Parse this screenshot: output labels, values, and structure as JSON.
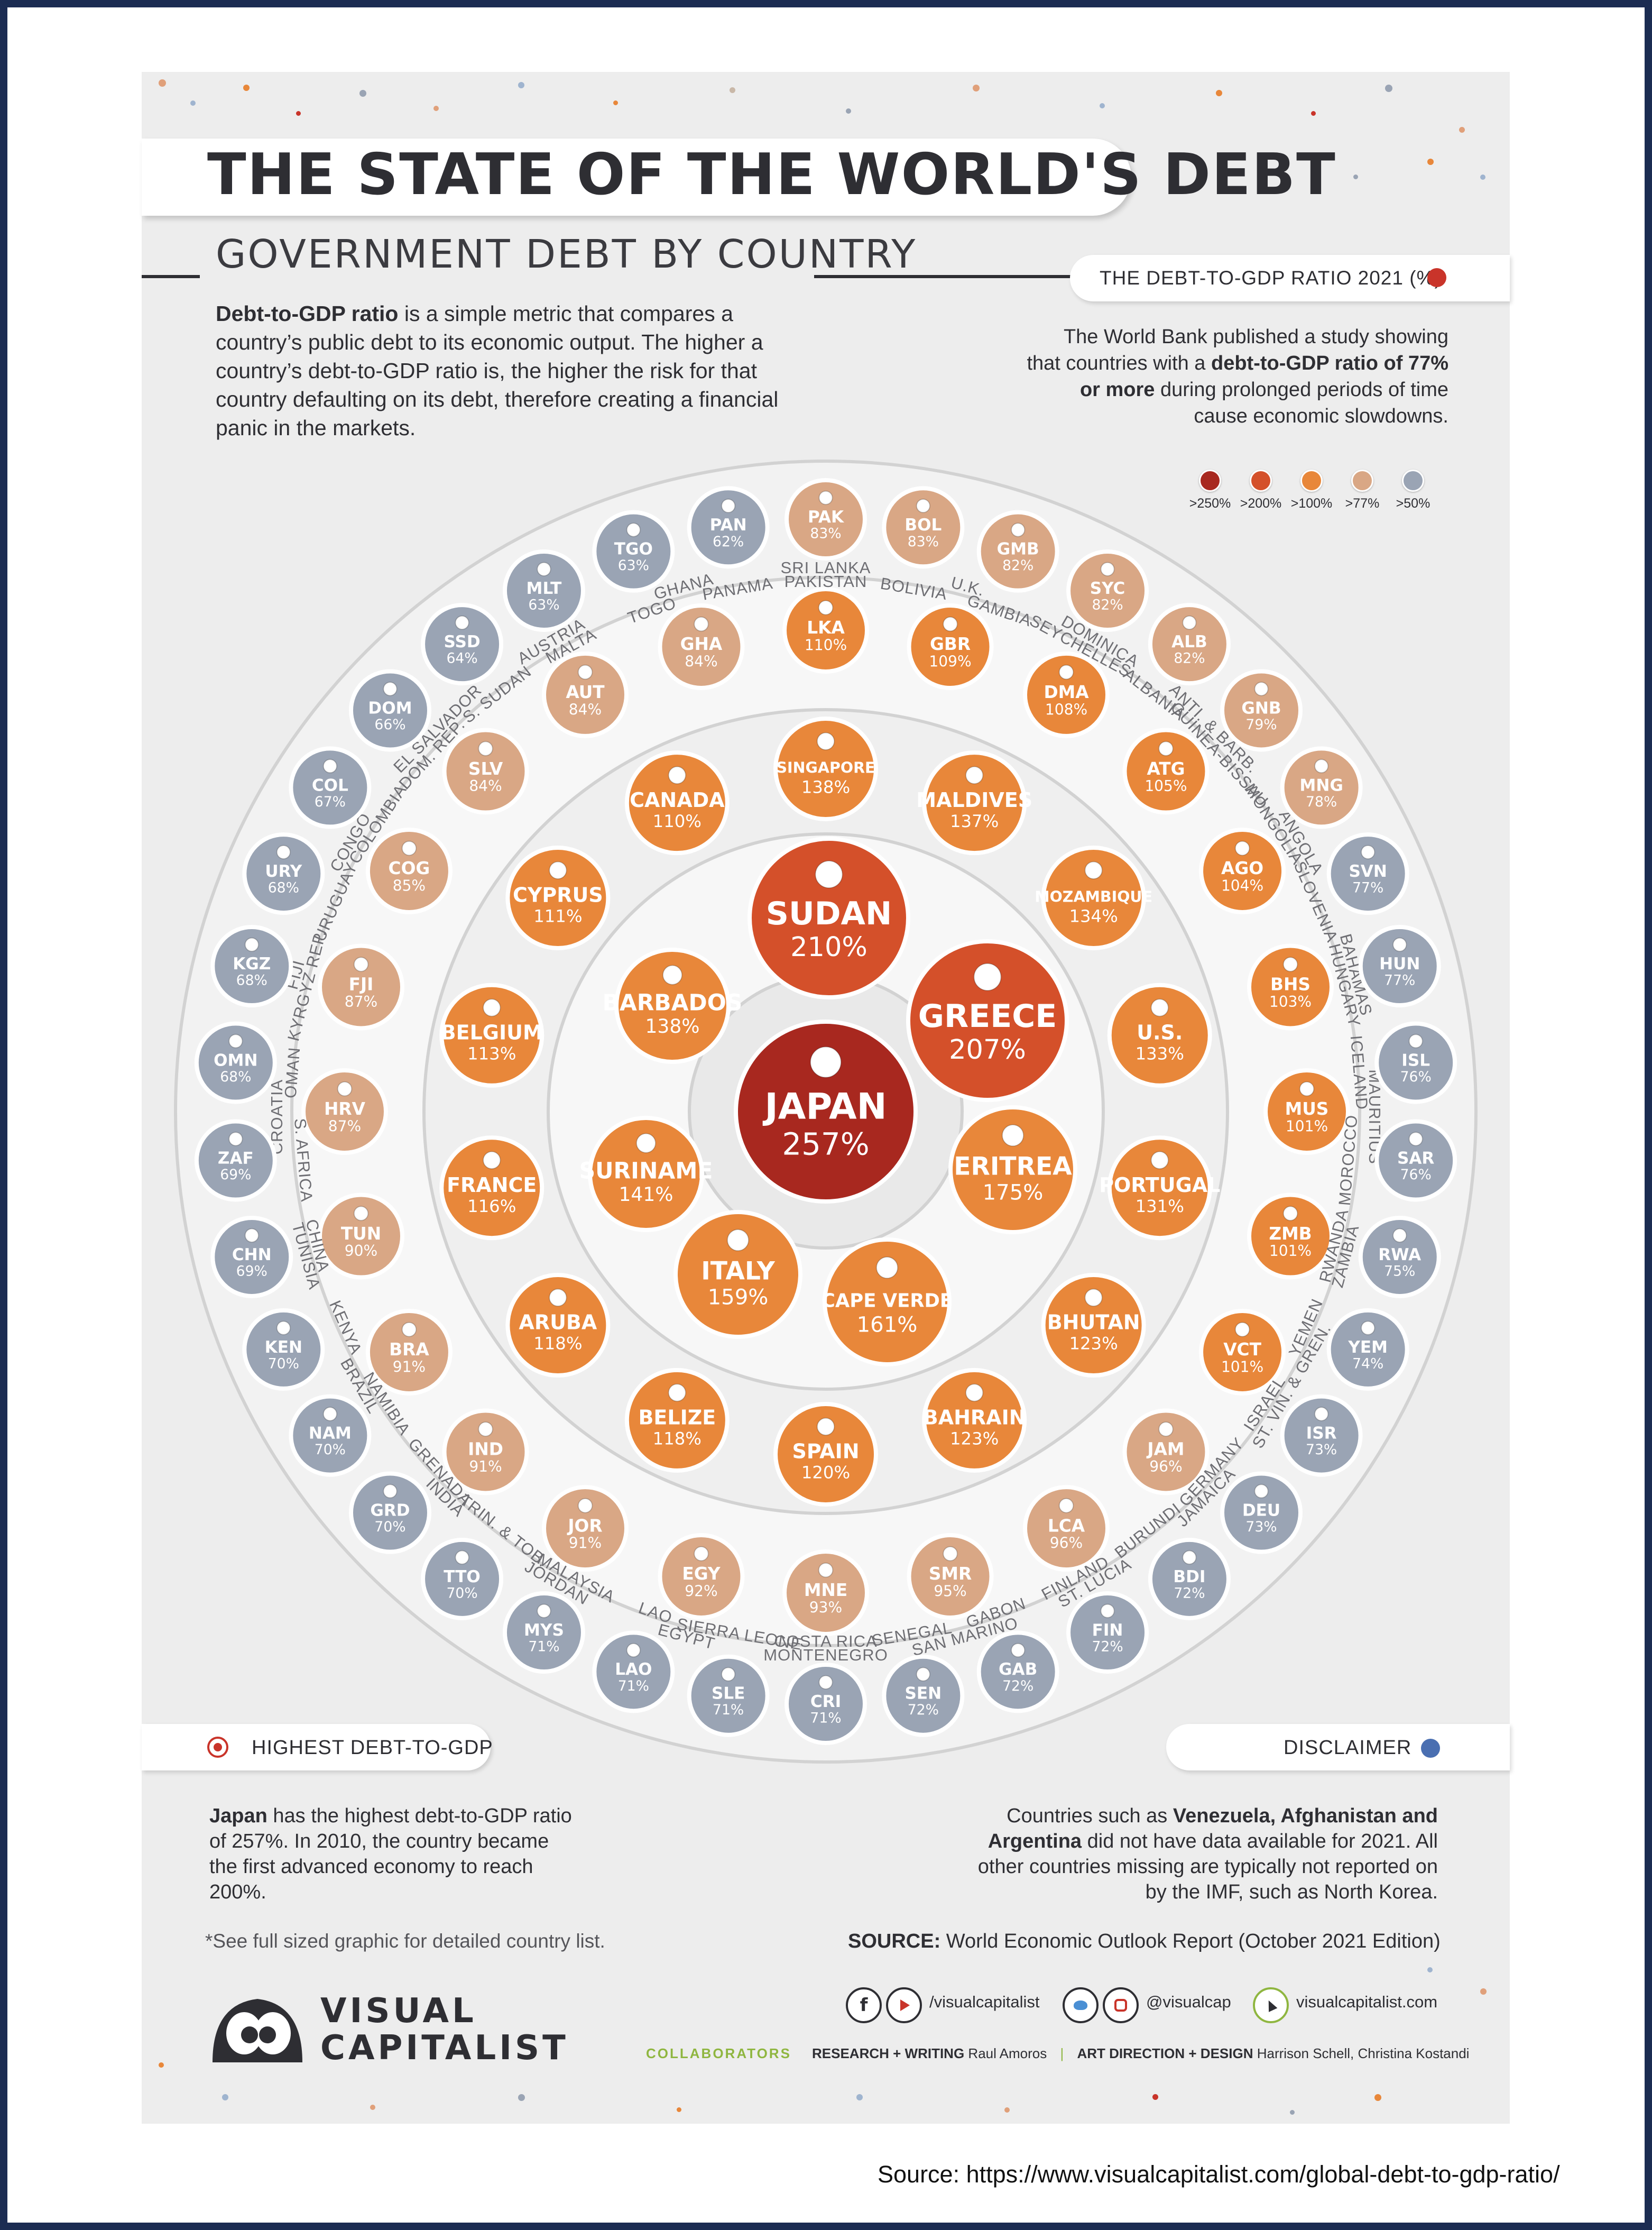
{
  "header": {
    "title": "THE STATE OF THE WORLD'S DEBT",
    "subtitle": "GOVERNMENT DEBT BY COUNTRY",
    "intro_bold": "Debt-to-GDP ratio",
    "intro_rest": " is a simple metric that compares a country’s public debt to its economic output. The higher a country’s debt-to-GDP ratio is, the higher the risk for that country defaulting on its debt, therefore creating a financial panic in the markets."
  },
  "legend": {
    "title": "THE DEBT-TO-GDP RATIO 2021 (%)",
    "note_pre": "The World Bank published a study showing that countries with a ",
    "note_bold": "debt-to-GDP ratio of 77% or more",
    "note_post": " during prolonged periods of time cause economic slowdowns.",
    "bins": [
      {
        "label": ">250%",
        "color": "#a8281f"
      },
      {
        "label": ">200%",
        "color": "#d4502a"
      },
      {
        "label": ">100%",
        "color": "#e8873a"
      },
      {
        "label": ">77%",
        "color": "#d9a785"
      },
      {
        "label": ">50%",
        "color": "#9aa4b4"
      }
    ]
  },
  "chart_data": {
    "type": "bubble",
    "title": "THE DEBT-TO-GDP RATIO 2021 (%)",
    "unit": "%",
    "countries": [
      {
        "code": "JAPAN",
        "name": "",
        "value": 257,
        "ring": 0
      },
      {
        "code": "SUDAN",
        "name": "",
        "value": 210,
        "ring": 1
      },
      {
        "code": "GREECE",
        "name": "",
        "value": 207,
        "ring": 1
      },
      {
        "code": "ERITREA",
        "name": "",
        "value": 175,
        "ring": 1
      },
      {
        "code": "CAPE VERDE",
        "name": "",
        "value": 161,
        "ring": 1
      },
      {
        "code": "ITALY",
        "name": "",
        "value": 159,
        "ring": 1
      },
      {
        "code": "SURINAME",
        "name": "",
        "value": 141,
        "ring": 1
      },
      {
        "code": "BARBADOS",
        "name": "",
        "value": 138,
        "ring": 1
      },
      {
        "code": "SINGAPORE",
        "name": "",
        "value": 138,
        "ring": 2
      },
      {
        "code": "MALDIVES",
        "name": "",
        "value": 137,
        "ring": 2
      },
      {
        "code": "MOZAMBIQUE",
        "name": "",
        "value": 134,
        "ring": 2
      },
      {
        "code": "U.S.",
        "name": "",
        "value": 133,
        "ring": 2
      },
      {
        "code": "PORTUGAL",
        "name": "",
        "value": 131,
        "ring": 2
      },
      {
        "code": "BHUTAN",
        "name": "",
        "value": 123,
        "ring": 2
      },
      {
        "code": "BAHRAIN",
        "name": "",
        "value": 123,
        "ring": 2
      },
      {
        "code": "SPAIN",
        "name": "",
        "value": 120,
        "ring": 2
      },
      {
        "code": "BELIZE",
        "name": "",
        "value": 118,
        "ring": 2
      },
      {
        "code": "ARUBA",
        "name": "",
        "value": 118,
        "ring": 2
      },
      {
        "code": "FRANCE",
        "name": "",
        "value": 116,
        "ring": 2
      },
      {
        "code": "BELGIUM",
        "name": "",
        "value": 113,
        "ring": 2
      },
      {
        "code": "CYPRUS",
        "name": "",
        "value": 111,
        "ring": 2
      },
      {
        "code": "CANADA",
        "name": "",
        "value": 110,
        "ring": 2
      },
      {
        "code": "LKA",
        "name": "SRI LANKA",
        "value": 110,
        "ring": 3
      },
      {
        "code": "GBR",
        "name": "U.K.",
        "value": 109,
        "ring": 3
      },
      {
        "code": "DMA",
        "name": "DOMINICA",
        "value": 108,
        "ring": 3
      },
      {
        "code": "ATG",
        "name": "ANTI. & BARB.",
        "value": 105,
        "ring": 3
      },
      {
        "code": "AGO",
        "name": "ANGOLA",
        "value": 104,
        "ring": 3
      },
      {
        "code": "BHS",
        "name": "BAHAMAS",
        "value": 103,
        "ring": 3
      },
      {
        "code": "MUS",
        "name": "MAURITIUS",
        "value": 101,
        "ring": 3
      },
      {
        "code": "ZMB",
        "name": "ZAMBIA",
        "value": 101,
        "ring": 3
      },
      {
        "code": "VCT",
        "name": "ST. VIN. & GREN.",
        "value": 101,
        "ring": 3
      },
      {
        "code": "JAM",
        "name": "JAMAICA",
        "value": 96,
        "ring": 3
      },
      {
        "code": "LCA",
        "name": "ST. LUCIA",
        "value": 96,
        "ring": 3
      },
      {
        "code": "SMR",
        "name": "SAN MARINO",
        "value": 95,
        "ring": 3
      },
      {
        "code": "MNE",
        "name": "MONTENEGRO",
        "value": 93,
        "ring": 3
      },
      {
        "code": "EGY",
        "name": "EGYPT",
        "value": 92,
        "ring": 3
      },
      {
        "code": "JOR",
        "name": "JORDAN",
        "value": 91,
        "ring": 3
      },
      {
        "code": "IND",
        "name": "INDIA",
        "value": 91,
        "ring": 3
      },
      {
        "code": "BRA",
        "name": "BRAZIL",
        "value": 91,
        "ring": 3
      },
      {
        "code": "TUN",
        "name": "TUNISIA",
        "value": 90,
        "ring": 3
      },
      {
        "code": "HRV",
        "name": "CROATIA",
        "value": 87,
        "ring": 3
      },
      {
        "code": "FJI",
        "name": "FIJI",
        "value": 87,
        "ring": 3
      },
      {
        "code": "COG",
        "name": "CONGO",
        "value": 85,
        "ring": 3
      },
      {
        "code": "SLV",
        "name": "EL SALVADOR",
        "value": 84,
        "ring": 3
      },
      {
        "code": "AUT",
        "name": "AUSTRIA",
        "value": 84,
        "ring": 3
      },
      {
        "code": "GHA",
        "name": "GHANA",
        "value": 84,
        "ring": 3
      },
      {
        "code": "PAK",
        "name": "PAKISTAN",
        "value": 83,
        "ring": 4
      },
      {
        "code": "BOL",
        "name": "BOLIVIA",
        "value": 83,
        "ring": 4
      },
      {
        "code": "GMB",
        "name": "GAMBIA",
        "value": 82,
        "ring": 4
      },
      {
        "code": "SYC",
        "name": "SEYCHELLES",
        "value": 82,
        "ring": 4
      },
      {
        "code": "ALB",
        "name": "ALBANIA",
        "value": 82,
        "ring": 4
      },
      {
        "code": "GNB",
        "name": "GUINEA-BISSAU",
        "value": 79,
        "ring": 4
      },
      {
        "code": "MNG",
        "name": "MONGOLIA",
        "value": 78,
        "ring": 4
      },
      {
        "code": "SVN",
        "name": "SLOVENIA",
        "value": 77,
        "ring": 4
      },
      {
        "code": "HUN",
        "name": "HUNGARY",
        "value": 77,
        "ring": 4
      },
      {
        "code": "ISL",
        "name": "ICELAND",
        "value": 76,
        "ring": 4
      },
      {
        "code": "SAR",
        "name": "MOROCCO",
        "value": 76,
        "ring": 4
      },
      {
        "code": "RWA",
        "name": "RWANDA",
        "value": 75,
        "ring": 4
      },
      {
        "code": "YEM",
        "name": "YEMEN",
        "value": 74,
        "ring": 4
      },
      {
        "code": "ISR",
        "name": "ISRAEL",
        "value": 73,
        "ring": 4
      },
      {
        "code": "DEU",
        "name": "GERMANY",
        "value": 73,
        "ring": 4
      },
      {
        "code": "BDI",
        "name": "BURUNDI",
        "value": 72,
        "ring": 4
      },
      {
        "code": "FIN",
        "name": "FINLAND",
        "value": 72,
        "ring": 4
      },
      {
        "code": "GAB",
        "name": "GABON",
        "value": 72,
        "ring": 4
      },
      {
        "code": "SEN",
        "name": "SENEGAL",
        "value": 72,
        "ring": 4
      },
      {
        "code": "CRI",
        "name": "COSTA RICA",
        "value": 71,
        "ring": 4
      },
      {
        "code": "SLE",
        "name": "SIERRA LEONE",
        "value": 71,
        "ring": 4
      },
      {
        "code": "LAO",
        "name": "LAO",
        "value": 71,
        "ring": 4
      },
      {
        "code": "MYS",
        "name": "MALAYSIA",
        "value": 71,
        "ring": 4
      },
      {
        "code": "TTO",
        "name": "TRIN. & TOB.",
        "value": 70,
        "ring": 4
      },
      {
        "code": "GRD",
        "name": "GRENADA",
        "value": 70,
        "ring": 4
      },
      {
        "code": "NAM",
        "name": "NAMIBIA",
        "value": 70,
        "ring": 4
      },
      {
        "code": "KEN",
        "name": "KENYA",
        "value": 70,
        "ring": 4
      },
      {
        "code": "CHN",
        "name": "CHINA",
        "value": 69,
        "ring": 4
      },
      {
        "code": "ZAF",
        "name": "S. AFRICA",
        "value": 69,
        "ring": 4
      },
      {
        "code": "OMN",
        "name": "OMAN",
        "value": 68,
        "ring": 4
      },
      {
        "code": "KGZ",
        "name": "KYRGYZ REP.",
        "value": 68,
        "ring": 4
      },
      {
        "code": "URY",
        "name": "URUGUAY",
        "value": 68,
        "ring": 4
      },
      {
        "code": "COL",
        "name": "COLOMBIA",
        "value": 67,
        "ring": 4
      },
      {
        "code": "DOM",
        "name": "DOM. REP.",
        "value": 66,
        "ring": 4
      },
      {
        "code": "SSD",
        "name": "S. SUDAN",
        "value": 64,
        "ring": 4
      },
      {
        "code": "MLT",
        "name": "MALTA",
        "value": 63,
        "ring": 4
      },
      {
        "code": "TGO",
        "name": "TOGO",
        "value": 63,
        "ring": 4
      },
      {
        "code": "PAN",
        "name": "PANAMA",
        "value": 62,
        "ring": 4
      }
    ]
  },
  "highlight": {
    "title": "HIGHEST DEBT-TO-GDP",
    "bold": "Japan",
    "text": " has the highest debt-to-GDP ratio of 257%. In 2010, the country became the first advanced economy to reach 200%."
  },
  "disclaimer": {
    "title": "DISCLAIMER",
    "pre": "Countries such as ",
    "bold": "Venezuela, Afghanistan and Argentina",
    "post": " did not have data available for 2021. All other countries missing are typically not reported on by the IMF, such as North Korea."
  },
  "footer": {
    "note": "*See full sized graphic for detailed country list.",
    "source_label": "SOURCE:",
    "source_text": " World Economic Outlook Report (October 2021 Edition)",
    "logo_line1": "VISUAL",
    "logo_line2": "CAPITALIST",
    "social_1": "/visualcapitalist",
    "social_2": "@visualcap",
    "social_3": "visualcapitalist.com",
    "collab_label": "COLLABORATORS",
    "research_label": "RESEARCH + WRITING",
    "research_name": "Raul Amoros",
    "art_label": "ART DIRECTION + DESIGN",
    "art_name": "Harrison Schell, Christina Kostandi"
  },
  "page_source": "Source: https://www.visualcapitalist.com/global-debt-to-gdp-ratio/"
}
